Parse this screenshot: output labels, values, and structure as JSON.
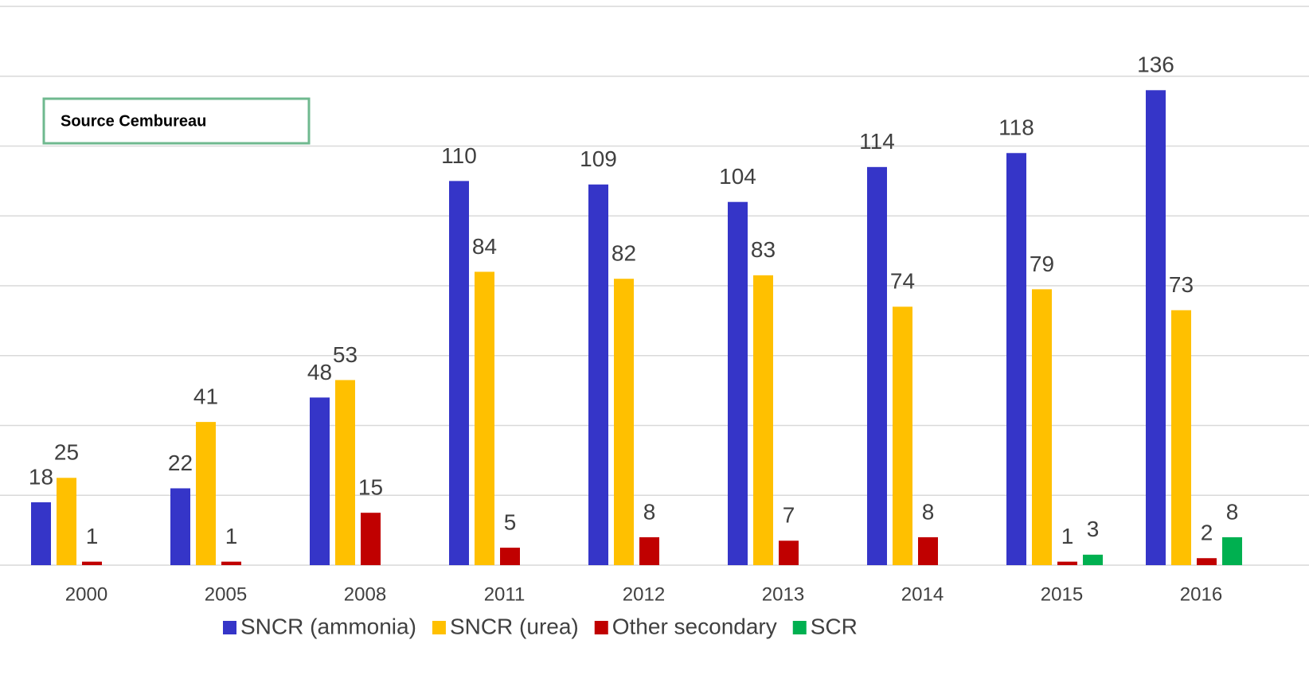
{
  "chart_data": {
    "type": "bar",
    "annotation": "Source Cembureau",
    "categories": [
      "2000",
      "2005",
      "2008",
      "2011",
      "2012",
      "2013",
      "2014",
      "2015",
      "2016"
    ],
    "series": [
      {
        "name": "SNCR (ammonia)",
        "color": "#3535c8",
        "values": [
          18,
          22,
          48,
          110,
          109,
          104,
          114,
          118,
          136
        ]
      },
      {
        "name": "SNCR (urea)",
        "color": "#ffc000",
        "values": [
          25,
          41,
          53,
          84,
          82,
          83,
          74,
          79,
          73
        ]
      },
      {
        "name": "Other secondary",
        "color": "#c00000",
        "values": [
          1,
          1,
          15,
          5,
          8,
          7,
          8,
          1,
          2
        ]
      },
      {
        "name": "SCR",
        "color": "#00b050",
        "values": [
          null,
          null,
          null,
          null,
          null,
          null,
          null,
          3,
          8
        ]
      }
    ],
    "ylim": [
      0,
      160
    ],
    "yticks": [
      0,
      20,
      40,
      60,
      80,
      100,
      120,
      140,
      160
    ],
    "grid": true
  }
}
